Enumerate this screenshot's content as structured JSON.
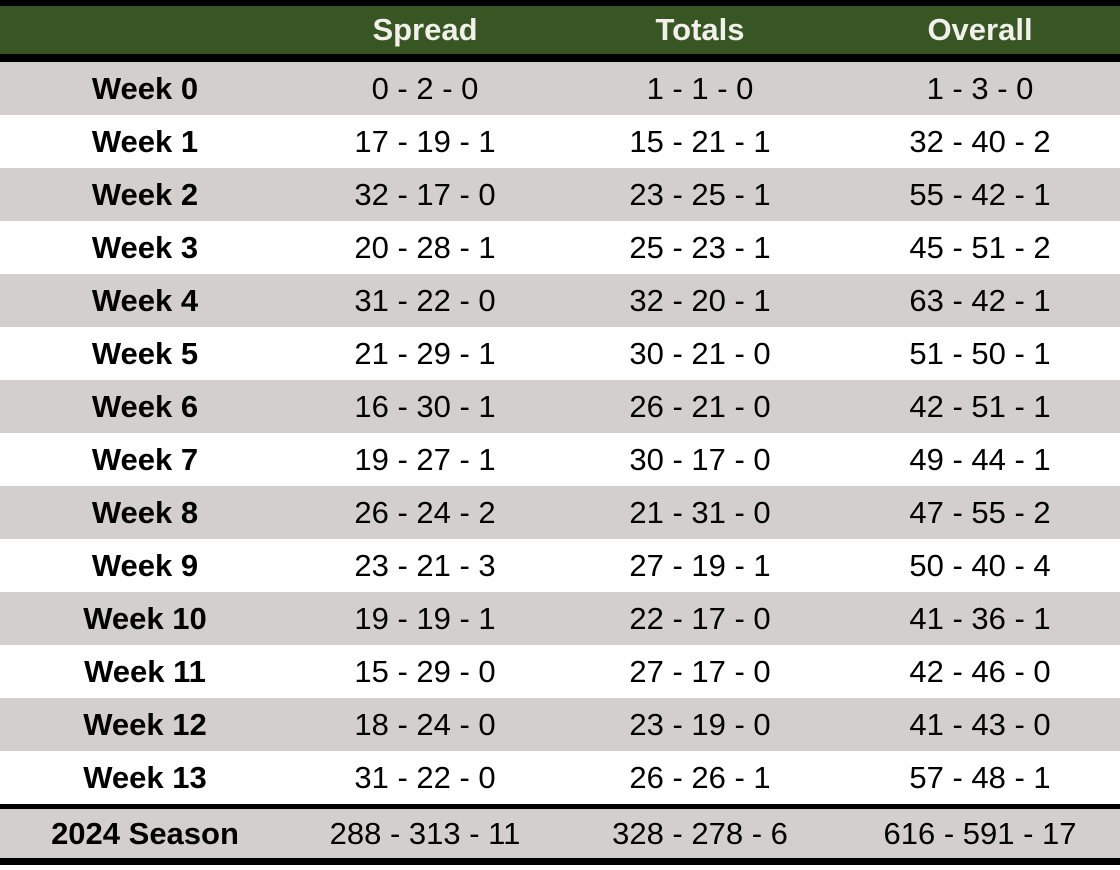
{
  "chart_data": {
    "type": "table",
    "columns": [
      "",
      "Spread",
      "Totals",
      "Overall"
    ],
    "rows": [
      {
        "label": "Week 0",
        "spread": "0 - 2 - 0",
        "totals": "1 - 1 - 0",
        "overall": "1 - 3 - 0"
      },
      {
        "label": "Week 1",
        "spread": "17 - 19 - 1",
        "totals": "15 - 21 - 1",
        "overall": "32 - 40 - 2"
      },
      {
        "label": "Week 2",
        "spread": "32 - 17 - 0",
        "totals": "23 - 25 - 1",
        "overall": "55 - 42 - 1"
      },
      {
        "label": "Week 3",
        "spread": "20 - 28 - 1",
        "totals": "25 - 23 - 1",
        "overall": "45 - 51 - 2"
      },
      {
        "label": "Week 4",
        "spread": "31 - 22 - 0",
        "totals": "32 - 20 - 1",
        "overall": "63 - 42 - 1"
      },
      {
        "label": "Week 5",
        "spread": "21 - 29 - 1",
        "totals": "30 - 21 - 0",
        "overall": "51 - 50 - 1"
      },
      {
        "label": "Week 6",
        "spread": "16 - 30 - 1",
        "totals": "26 - 21 - 0",
        "overall": "42 - 51 - 1"
      },
      {
        "label": "Week 7",
        "spread": "19 - 27 - 1",
        "totals": "30 - 17 - 0",
        "overall": "49 - 44 - 1"
      },
      {
        "label": "Week 8",
        "spread": "26 - 24 - 2",
        "totals": "21 - 31 - 0",
        "overall": "47 - 55 - 2"
      },
      {
        "label": "Week 9",
        "spread": "23 - 21 - 3",
        "totals": "27 - 19 - 1",
        "overall": "50 - 40 - 4"
      },
      {
        "label": "Week 10",
        "spread": "19 - 19 - 1",
        "totals": "22 - 17 - 0",
        "overall": "41 - 36 - 1"
      },
      {
        "label": "Week 11",
        "spread": "15 - 29 - 0",
        "totals": "27 - 17 - 0",
        "overall": "42 - 46 - 0"
      },
      {
        "label": "Week 12",
        "spread": "18 - 24 - 0",
        "totals": "23 - 19 - 0",
        "overall": "41 - 43 - 0"
      },
      {
        "label": "Week 13",
        "spread": "31 - 22 - 0",
        "totals": "26 - 26 - 1",
        "overall": "57 - 48 - 1"
      }
    ],
    "footer": {
      "label": "2024 Season",
      "spread": "288 - 313 - 11",
      "totals": "328 - 278 - 6",
      "overall": "616 - 591 - 17"
    },
    "layout": {
      "striped": true,
      "stripe_pattern": "first_row_shaded_then_alternating",
      "header_position": "top",
      "value_format": "wins - losses - pushes",
      "alignment": "center"
    }
  },
  "colors": {
    "header_bg": "#375623",
    "header_text": "#F2F0EA",
    "stripe": "#D3CFCF",
    "row_bg": "#FFFFFF",
    "border": "#000000",
    "text": "#000000"
  }
}
